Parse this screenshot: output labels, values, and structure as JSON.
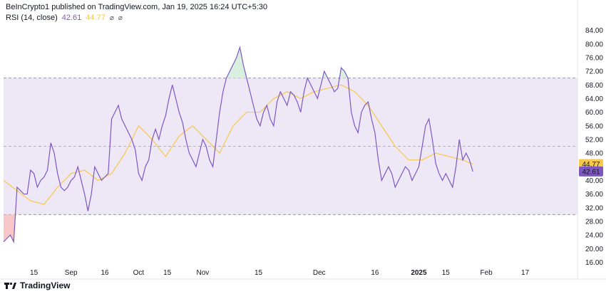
{
  "header": {
    "publisher": "BeInCrypto1 published on TradingView.com, Jan 19, 2025 16:24 UTC+5:30"
  },
  "legend": {
    "name": "RSI (14, close)",
    "rsi": "42.61",
    "ma": "44.77"
  },
  "footer": {
    "brand": "TradingView",
    "logo_icon": "tradingview-logo-icon"
  },
  "colors": {
    "rsi": "#7e57c2",
    "ma": "#f7c948",
    "band": "#ede7f6",
    "overbought_fill": "#d9f0df",
    "oversold_fill": "#f7c6c6"
  },
  "chart_data": {
    "type": "line",
    "title": "",
    "xlabel": "",
    "ylabel": "",
    "ylim": [
      14,
      86
    ],
    "yticks": [
      16,
      20,
      24,
      28,
      32,
      36,
      40,
      44,
      48,
      52,
      56,
      60,
      64,
      68,
      72,
      76,
      80,
      84
    ],
    "ytick_labels": [
      "16.00",
      "20.00",
      "24.00",
      "28.00",
      "32.00",
      "36.00",
      "40.00",
      "44.00",
      "48.00",
      "52.00",
      "56.00",
      "60.00",
      "64.00",
      "68.00",
      "72.00",
      "76.00",
      "80.00",
      "84.00"
    ],
    "xlim": [
      0,
      170
    ],
    "xticks": [
      {
        "x": 9,
        "label": "15"
      },
      {
        "x": 20,
        "label": "Sep"
      },
      {
        "x": 30,
        "label": "16"
      },
      {
        "x": 40,
        "label": "Oct"
      },
      {
        "x": 48.5,
        "label": "15"
      },
      {
        "x": 59,
        "label": "Nov"
      },
      {
        "x": 75.5,
        "label": "15"
      },
      {
        "x": 93.5,
        "label": "Dec"
      },
      {
        "x": 110,
        "label": "16"
      },
      {
        "x": 123,
        "label": "2025"
      },
      {
        "x": 131,
        "label": "15"
      },
      {
        "x": 143,
        "label": "Feb"
      },
      {
        "x": 154.5,
        "label": "17"
      }
    ],
    "levels": {
      "upper": 70,
      "middle": 50,
      "lower": 30
    },
    "last_values": {
      "ma": 44.77,
      "rsi": 42.61
    },
    "series": [
      {
        "key": "rsi",
        "points": [
          [
            0,
            22
          ],
          [
            1,
            23
          ],
          [
            2,
            24
          ],
          [
            3,
            22
          ],
          [
            4,
            38
          ],
          [
            5,
            37
          ],
          [
            6,
            36
          ],
          [
            7,
            36
          ],
          [
            8,
            43
          ],
          [
            9,
            42
          ],
          [
            10,
            38
          ],
          [
            11,
            40
          ],
          [
            12,
            41
          ],
          [
            13,
            43
          ],
          [
            14,
            51
          ],
          [
            15,
            48
          ],
          [
            16,
            42
          ],
          [
            17,
            38
          ],
          [
            18,
            37
          ],
          [
            19,
            38
          ],
          [
            20,
            40
          ],
          [
            21,
            41
          ],
          [
            22,
            44
          ],
          [
            23,
            40
          ],
          [
            24,
            36
          ],
          [
            25,
            31
          ],
          [
            26,
            36
          ],
          [
            27,
            44
          ],
          [
            28,
            42
          ],
          [
            29,
            40
          ],
          [
            30,
            41
          ],
          [
            31,
            42
          ],
          [
            32,
            58
          ],
          [
            33,
            60
          ],
          [
            34,
            62
          ],
          [
            35,
            58
          ],
          [
            36,
            56
          ],
          [
            37,
            54
          ],
          [
            38,
            52
          ],
          [
            39,
            49
          ],
          [
            40,
            42
          ],
          [
            41,
            40
          ],
          [
            42,
            44
          ],
          [
            43,
            46
          ],
          [
            44,
            52
          ],
          [
            45,
            55
          ],
          [
            46,
            52
          ],
          [
            47,
            56
          ],
          [
            48,
            59
          ],
          [
            49,
            64
          ],
          [
            50,
            68
          ],
          [
            51,
            64
          ],
          [
            52,
            60
          ],
          [
            53,
            57
          ],
          [
            54,
            52
          ],
          [
            55,
            48
          ],
          [
            56,
            46
          ],
          [
            57,
            44
          ],
          [
            58,
            48
          ],
          [
            59,
            52
          ],
          [
            60,
            50
          ],
          [
            61,
            46
          ],
          [
            62,
            44
          ],
          [
            63,
            52
          ],
          [
            64,
            60
          ],
          [
            65,
            66
          ],
          [
            66,
            70
          ],
          [
            67,
            72
          ],
          [
            68,
            74
          ],
          [
            69,
            76
          ],
          [
            70,
            79
          ],
          [
            71,
            74
          ],
          [
            72,
            70
          ],
          [
            73,
            66
          ],
          [
            74,
            62
          ],
          [
            75,
            58
          ],
          [
            76,
            56
          ],
          [
            77,
            60
          ],
          [
            78,
            62
          ],
          [
            79,
            58
          ],
          [
            80,
            56
          ],
          [
            81,
            63
          ],
          [
            82,
            66
          ],
          [
            83,
            64
          ],
          [
            84,
            62
          ],
          [
            85,
            66
          ],
          [
            86,
            65
          ],
          [
            87,
            63
          ],
          [
            88,
            60
          ],
          [
            89,
            66
          ],
          [
            90,
            70
          ],
          [
            91,
            68
          ],
          [
            92,
            66
          ],
          [
            93,
            64
          ],
          [
            94,
            68
          ],
          [
            95,
            72
          ],
          [
            96,
            70
          ],
          [
            97,
            68
          ],
          [
            98,
            66
          ],
          [
            99,
            67
          ],
          [
            100,
            73
          ],
          [
            101,
            72
          ],
          [
            102,
            70
          ],
          [
            103,
            60
          ],
          [
            104,
            56
          ],
          [
            105,
            54
          ],
          [
            106,
            60
          ],
          [
            107,
            62
          ],
          [
            108,
            63
          ],
          [
            109,
            58
          ],
          [
            110,
            54
          ],
          [
            111,
            46
          ],
          [
            112,
            40
          ],
          [
            113,
            42
          ],
          [
            114,
            44
          ],
          [
            115,
            42
          ],
          [
            116,
            38
          ],
          [
            117,
            40
          ],
          [
            118,
            42
          ],
          [
            119,
            44
          ],
          [
            120,
            43
          ],
          [
            121,
            40
          ],
          [
            122,
            42
          ],
          [
            123,
            44
          ],
          [
            124,
            50
          ],
          [
            125,
            56
          ],
          [
            126,
            58
          ],
          [
            127,
            52
          ],
          [
            128,
            45
          ],
          [
            129,
            42
          ],
          [
            130,
            40
          ],
          [
            131,
            42
          ],
          [
            132,
            40
          ],
          [
            133,
            38
          ],
          [
            134,
            44
          ],
          [
            135,
            52
          ],
          [
            136,
            46
          ],
          [
            137,
            48
          ],
          [
            138,
            46
          ],
          [
            139,
            42.61
          ]
        ]
      },
      {
        "key": "ma",
        "points": [
          [
            0,
            40
          ],
          [
            4,
            37
          ],
          [
            8,
            34
          ],
          [
            12,
            33
          ],
          [
            16,
            38
          ],
          [
            20,
            42
          ],
          [
            24,
            43
          ],
          [
            28,
            40
          ],
          [
            32,
            42
          ],
          [
            36,
            48
          ],
          [
            40,
            56
          ],
          [
            44,
            52
          ],
          [
            48,
            47
          ],
          [
            52,
            53
          ],
          [
            56,
            56
          ],
          [
            60,
            52
          ],
          [
            64,
            48
          ],
          [
            68,
            56
          ],
          [
            72,
            60
          ],
          [
            76,
            60
          ],
          [
            80,
            64
          ],
          [
            84,
            66
          ],
          [
            88,
            64
          ],
          [
            92,
            66
          ],
          [
            96,
            67
          ],
          [
            100,
            68
          ],
          [
            104,
            66
          ],
          [
            108,
            62
          ],
          [
            112,
            56
          ],
          [
            116,
            50
          ],
          [
            120,
            46
          ],
          [
            124,
            46
          ],
          [
            128,
            48
          ],
          [
            132,
            47
          ],
          [
            136,
            46
          ],
          [
            139,
            44.77
          ]
        ]
      }
    ]
  }
}
